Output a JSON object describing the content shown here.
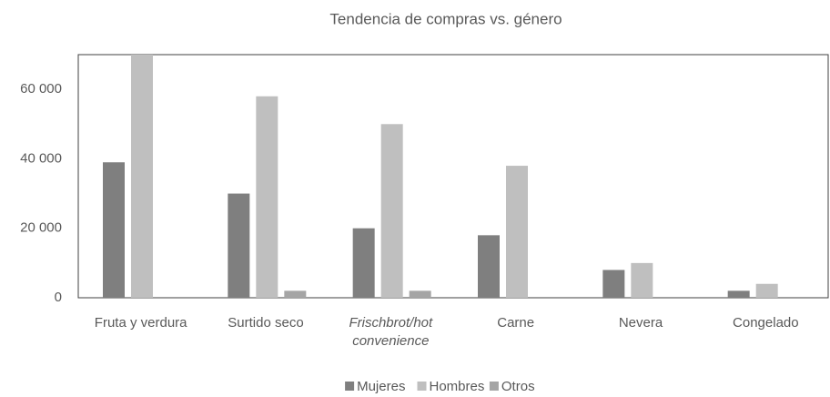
{
  "chart_data": {
    "type": "bar",
    "title": "Tendencia de compras vs. género",
    "categories": [
      "Fruta y verdura",
      "Surtido seco",
      "Frischbrot/hot convenience",
      "Carne",
      "Nevera",
      "Congelado"
    ],
    "series": [
      {
        "name": "Mujeres",
        "color": "#7f7f7f",
        "values": [
          39000,
          30000,
          20000,
          18000,
          8000,
          2000
        ]
      },
      {
        "name": "Hombres",
        "color": "#bfbfbf",
        "values": [
          70000,
          58000,
          50000,
          38000,
          10000,
          4000
        ]
      },
      {
        "name": "Otros",
        "color": "#a5a5a5",
        "values": [
          0,
          2000,
          2000,
          0,
          0,
          0
        ]
      }
    ],
    "ylim": [
      0,
      70000
    ],
    "yticks": [
      0,
      {
        "value": 20000,
        "label": "20 000"
      },
      {
        "value": 40000,
        "label": "40 000"
      },
      {
        "value": 60000,
        "label": "60 000"
      }
    ],
    "grid": false,
    "legend": "bottom"
  }
}
